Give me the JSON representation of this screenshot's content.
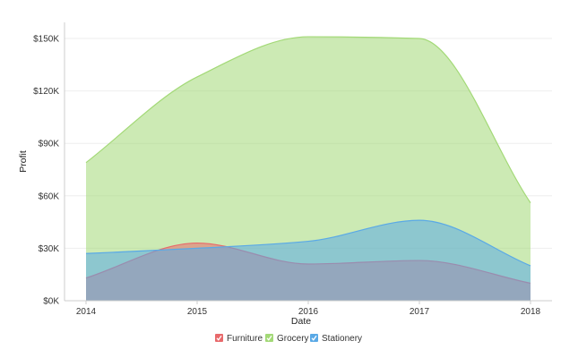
{
  "chart_data": {
    "type": "area",
    "x": [
      "2014",
      "2015",
      "2016",
      "2017",
      "2018"
    ],
    "xlabel": "Date",
    "ylabel": "Profit",
    "ylim": [
      0,
      150000
    ],
    "yticks": [
      0,
      30000,
      60000,
      90000,
      120000,
      150000
    ],
    "ytick_labels": [
      "$0K",
      "$30K",
      "$60K",
      "$90K",
      "$120K",
      "$150K"
    ],
    "grid": true,
    "legend_position": "bottom",
    "series": [
      {
        "name": "Furniture",
        "color": "#e8696b",
        "values": [
          13000,
          33000,
          21000,
          23000,
          10000
        ]
      },
      {
        "name": "Grocery",
        "color": "#a3d977",
        "values": [
          79000,
          128000,
          151000,
          150000,
          56000
        ]
      },
      {
        "name": "Stationery",
        "color": "#5aa9e6",
        "values": [
          27000,
          30000,
          34000,
          46000,
          20000
        ]
      }
    ]
  }
}
